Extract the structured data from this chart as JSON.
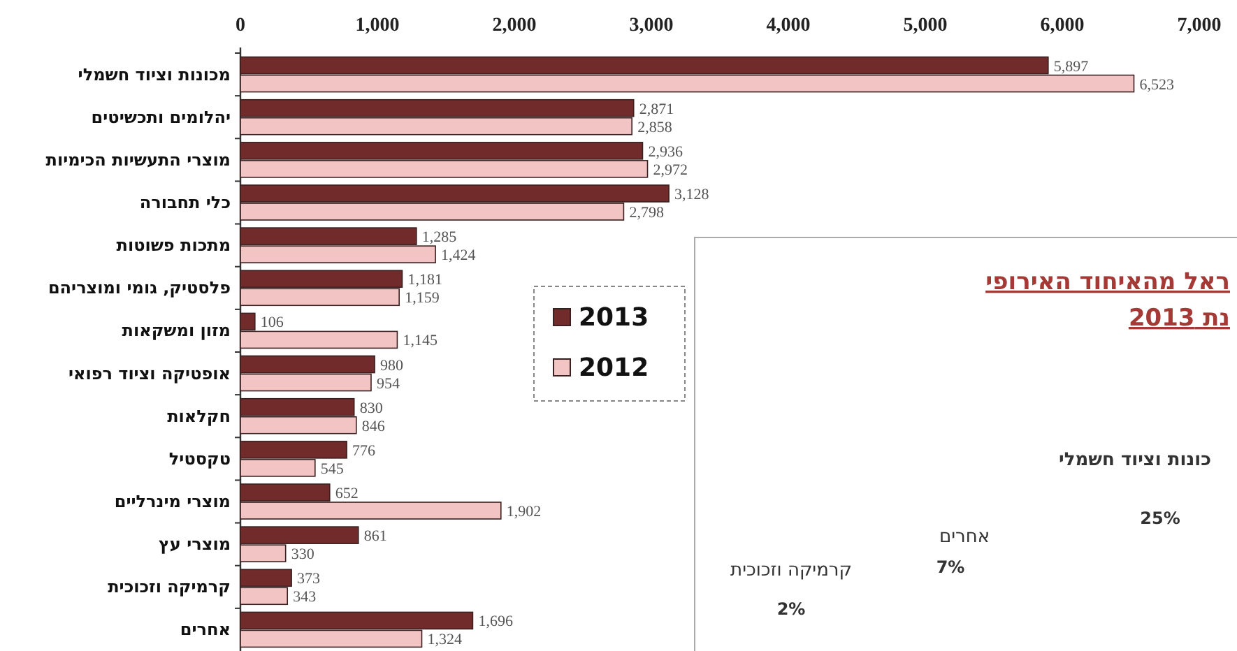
{
  "chart_data": [
    {
      "type": "bar",
      "orientation": "horizontal",
      "categories": [
        "מכונות וציוד חשמלי",
        "יהלומים ותכשיטים",
        "מוצרי התעשיות הכימיות",
        "כלי תחבורה",
        "מתכות פשוטות",
        "פלסטיק, גומי ומוצריהם",
        "מזון ומשקאות",
        "אופטיקה וציוד רפואי",
        "חקלאות",
        "טקסטיל",
        "מוצרי מינרליים",
        "מוצרי עץ",
        "קרמיקה וזכוכית",
        "אחרים"
      ],
      "series": [
        {
          "name": "2013",
          "color": "#722b2b",
          "values": [
            5897,
            2871,
            2936,
            3128,
            1285,
            1181,
            106,
            980,
            830,
            776,
            652,
            861,
            373,
            1696
          ],
          "value_labels": [
            "5,897",
            "2,871",
            "2,936",
            "3,128",
            "1,285",
            "1,181",
            "106",
            "980",
            "830",
            "776",
            "652",
            "861",
            "373",
            "1,696"
          ]
        },
        {
          "name": "2012",
          "color": "#f2c4c4",
          "values": [
            6523,
            2858,
            2972,
            2798,
            1424,
            1159,
            1145,
            954,
            846,
            545,
            1902,
            330,
            343,
            1324
          ],
          "value_labels": [
            "6,523",
            "2,858",
            "2,972",
            "2,798",
            "1,424",
            "1,159",
            "1,145",
            "954",
            "846",
            "545",
            "1,902",
            "330",
            "343",
            "1,324"
          ]
        }
      ],
      "xlim": [
        0,
        7000
      ],
      "xticks": [
        {
          "value": 0,
          "label": "0"
        },
        {
          "value": 1000,
          "label": "1,000"
        },
        {
          "value": 2000,
          "label": "2,000"
        },
        {
          "value": 3000,
          "label": "3,000"
        },
        {
          "value": 4000,
          "label": "4,000"
        },
        {
          "value": 5000,
          "label": "5,000"
        },
        {
          "value": 6000,
          "label": "6,000"
        },
        {
          "value": 7000,
          "label": "7,000"
        }
      ],
      "legend": "center"
    },
    {
      "type": "other",
      "title": "ראל מהאיחוד האירופי",
      "subtitle": "נת 2013",
      "annotations": [
        "כונות וציוד חשמלי",
        "25%",
        "אחרים",
        "7%",
        "קרמיקה וזכוכית",
        "2%"
      ]
    }
  ]
}
